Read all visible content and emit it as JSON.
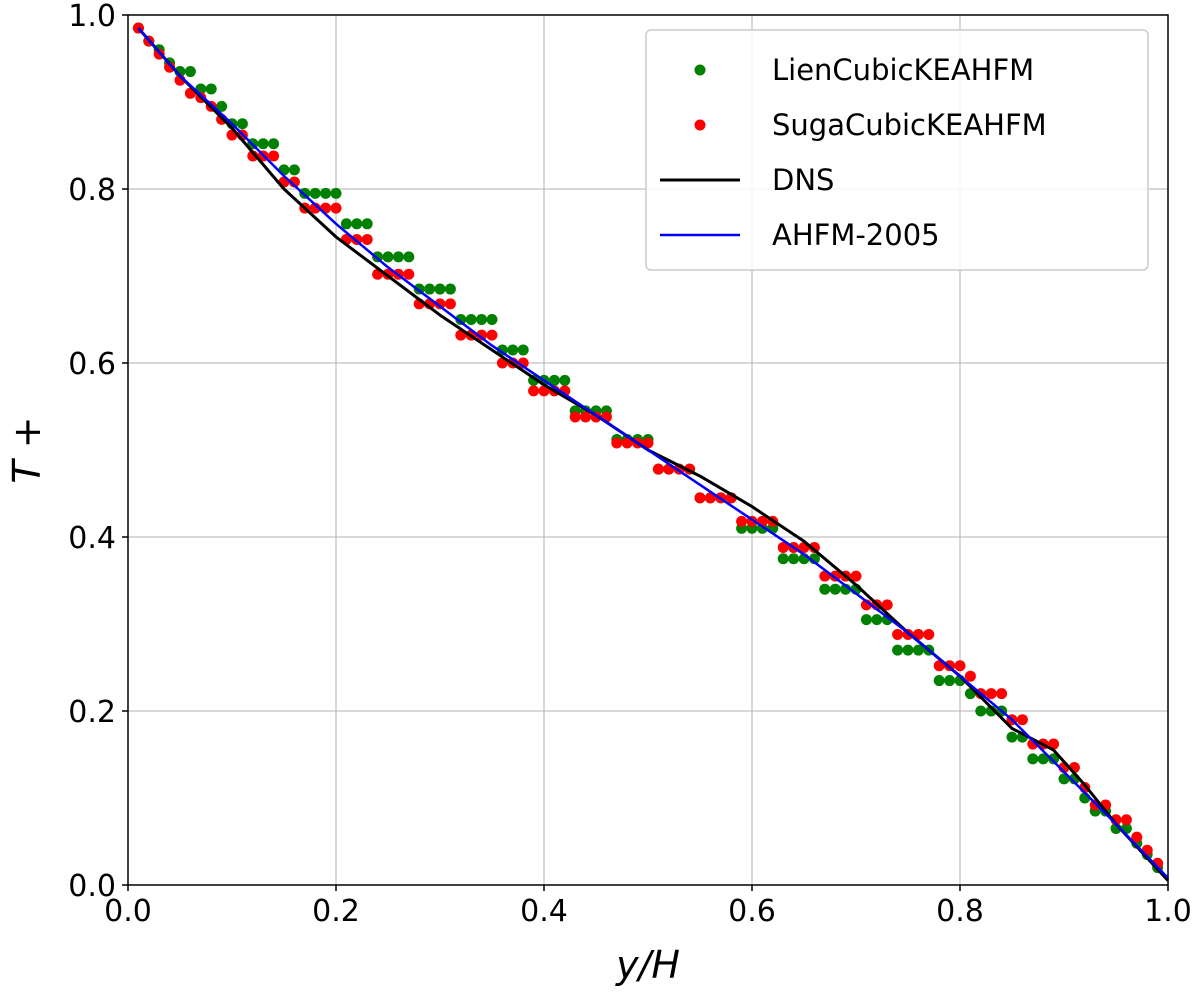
{
  "chart_data": {
    "type": "line",
    "title": "",
    "xlabel": "y/H",
    "ylabel": "T +",
    "xlim": [
      0.0,
      1.0
    ],
    "ylim": [
      0.0,
      1.0
    ],
    "xticks": [
      "0.0",
      "0.2",
      "0.4",
      "0.6",
      "0.8",
      "1.0"
    ],
    "yticks": [
      "0.0",
      "0.2",
      "0.4",
      "0.6",
      "0.8",
      "1.0"
    ],
    "grid": true,
    "legend_position": "top-right",
    "series": [
      {
        "name": "LienCubicKEAHFM",
        "kind": "scatter",
        "color": "#008000",
        "x": [
          0.01,
          0.02,
          0.03,
          0.04,
          0.05,
          0.06,
          0.07,
          0.08,
          0.09,
          0.1,
          0.11,
          0.12,
          0.13,
          0.14,
          0.15,
          0.16,
          0.17,
          0.18,
          0.19,
          0.2,
          0.21,
          0.22,
          0.23,
          0.24,
          0.25,
          0.26,
          0.27,
          0.28,
          0.29,
          0.3,
          0.31,
          0.32,
          0.33,
          0.34,
          0.35,
          0.36,
          0.37,
          0.38,
          0.39,
          0.4,
          0.41,
          0.42,
          0.43,
          0.44,
          0.45,
          0.46,
          0.47,
          0.48,
          0.49,
          0.5,
          0.51,
          0.52,
          0.53,
          0.54,
          0.55,
          0.56,
          0.57,
          0.58,
          0.59,
          0.6,
          0.61,
          0.62,
          0.63,
          0.64,
          0.65,
          0.66,
          0.67,
          0.68,
          0.69,
          0.7,
          0.71,
          0.72,
          0.73,
          0.74,
          0.75,
          0.76,
          0.77,
          0.78,
          0.79,
          0.8,
          0.81,
          0.82,
          0.83,
          0.84,
          0.85,
          0.86,
          0.87,
          0.88,
          0.89,
          0.9,
          0.91,
          0.92,
          0.93,
          0.94,
          0.95,
          0.96,
          0.97,
          0.98,
          0.99
        ],
        "y": [
          0.985,
          0.97,
          0.96,
          0.945,
          0.935,
          0.935,
          0.915,
          0.915,
          0.895,
          0.875,
          0.875,
          0.852,
          0.852,
          0.852,
          0.822,
          0.822,
          0.795,
          0.795,
          0.795,
          0.795,
          0.76,
          0.76,
          0.76,
          0.722,
          0.722,
          0.722,
          0.722,
          0.685,
          0.685,
          0.685,
          0.685,
          0.65,
          0.65,
          0.65,
          0.65,
          0.615,
          0.615,
          0.615,
          0.58,
          0.58,
          0.58,
          0.58,
          0.545,
          0.545,
          0.545,
          0.545,
          0.512,
          0.512,
          0.512,
          0.512,
          0.478,
          0.478,
          0.478,
          0.478,
          0.445,
          0.445,
          0.445,
          0.445,
          0.41,
          0.41,
          0.41,
          0.41,
          0.375,
          0.375,
          0.375,
          0.375,
          0.34,
          0.34,
          0.34,
          0.34,
          0.305,
          0.305,
          0.305,
          0.27,
          0.27,
          0.27,
          0.27,
          0.235,
          0.235,
          0.235,
          0.22,
          0.2,
          0.2,
          0.2,
          0.17,
          0.17,
          0.145,
          0.145,
          0.145,
          0.122,
          0.122,
          0.1,
          0.085,
          0.085,
          0.065,
          0.065,
          0.048,
          0.035,
          0.02
        ]
      },
      {
        "name": "SugaCubicKEAHFM",
        "kind": "scatter",
        "color": "#ff0000",
        "x": [
          0.01,
          0.02,
          0.03,
          0.04,
          0.05,
          0.06,
          0.07,
          0.08,
          0.09,
          0.1,
          0.11,
          0.12,
          0.13,
          0.14,
          0.15,
          0.16,
          0.17,
          0.18,
          0.19,
          0.2,
          0.21,
          0.22,
          0.23,
          0.24,
          0.25,
          0.26,
          0.27,
          0.28,
          0.29,
          0.3,
          0.31,
          0.32,
          0.33,
          0.34,
          0.35,
          0.36,
          0.37,
          0.38,
          0.39,
          0.4,
          0.41,
          0.42,
          0.43,
          0.44,
          0.45,
          0.46,
          0.47,
          0.48,
          0.49,
          0.5,
          0.51,
          0.52,
          0.53,
          0.54,
          0.55,
          0.56,
          0.57,
          0.58,
          0.59,
          0.6,
          0.61,
          0.62,
          0.63,
          0.64,
          0.65,
          0.66,
          0.67,
          0.68,
          0.69,
          0.7,
          0.71,
          0.72,
          0.73,
          0.74,
          0.75,
          0.76,
          0.77,
          0.78,
          0.79,
          0.8,
          0.81,
          0.82,
          0.83,
          0.84,
          0.85,
          0.86,
          0.87,
          0.88,
          0.89,
          0.9,
          0.91,
          0.92,
          0.93,
          0.94,
          0.95,
          0.96,
          0.97,
          0.98,
          0.99
        ],
        "y": [
          0.985,
          0.97,
          0.955,
          0.94,
          0.925,
          0.91,
          0.905,
          0.895,
          0.88,
          0.862,
          0.862,
          0.838,
          0.838,
          0.838,
          0.808,
          0.808,
          0.778,
          0.778,
          0.778,
          0.778,
          0.742,
          0.742,
          0.742,
          0.702,
          0.702,
          0.702,
          0.702,
          0.668,
          0.668,
          0.668,
          0.668,
          0.632,
          0.632,
          0.632,
          0.632,
          0.6,
          0.6,
          0.6,
          0.568,
          0.568,
          0.568,
          0.568,
          0.538,
          0.538,
          0.538,
          0.538,
          0.508,
          0.508,
          0.508,
          0.508,
          0.478,
          0.478,
          0.478,
          0.478,
          0.445,
          0.445,
          0.445,
          0.445,
          0.418,
          0.418,
          0.418,
          0.418,
          0.388,
          0.388,
          0.388,
          0.388,
          0.355,
          0.355,
          0.355,
          0.355,
          0.322,
          0.322,
          0.322,
          0.288,
          0.288,
          0.288,
          0.288,
          0.252,
          0.252,
          0.252,
          0.24,
          0.22,
          0.22,
          0.22,
          0.19,
          0.19,
          0.162,
          0.162,
          0.162,
          0.135,
          0.135,
          0.112,
          0.092,
          0.092,
          0.075,
          0.075,
          0.055,
          0.04,
          0.025
        ]
      },
      {
        "name": "DNS",
        "kind": "line",
        "color": "#000000",
        "x": [
          0.01,
          0.05,
          0.1,
          0.15,
          0.2,
          0.25,
          0.3,
          0.35,
          0.4,
          0.45,
          0.5,
          0.55,
          0.6,
          0.65,
          0.7,
          0.75,
          0.8,
          0.85,
          0.89,
          0.92,
          0.95,
          1.0
        ],
        "y": [
          0.985,
          0.93,
          0.87,
          0.8,
          0.745,
          0.7,
          0.655,
          0.615,
          0.575,
          0.54,
          0.5,
          0.47,
          0.435,
          0.395,
          0.345,
          0.29,
          0.24,
          0.18,
          0.155,
          0.115,
          0.07,
          0.005
        ]
      },
      {
        "name": "AHFM-2005",
        "kind": "line",
        "color": "#0000ff",
        "x": [
          0.01,
          0.05,
          0.1,
          0.15,
          0.2,
          0.25,
          0.3,
          0.35,
          0.4,
          0.45,
          0.5,
          0.55,
          0.6,
          0.65,
          0.7,
          0.75,
          0.8,
          0.85,
          0.9,
          0.95,
          1.0
        ],
        "y": [
          0.985,
          0.93,
          0.875,
          0.815,
          0.76,
          0.71,
          0.665,
          0.62,
          0.58,
          0.54,
          0.5,
          0.46,
          0.42,
          0.38,
          0.335,
          0.29,
          0.24,
          0.19,
          0.13,
          0.07,
          0.008
        ]
      }
    ]
  }
}
